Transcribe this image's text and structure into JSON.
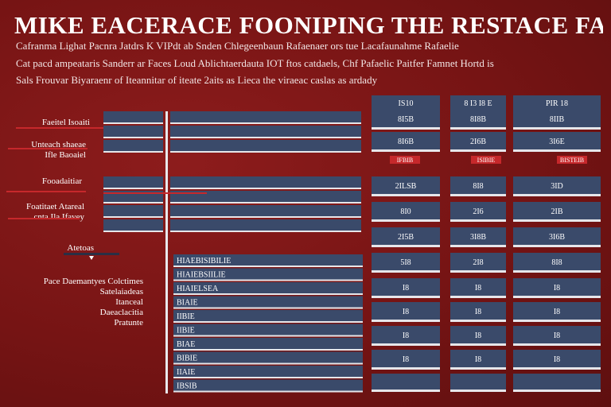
{
  "header": {
    "title": "MIKE EACERACE FOONIPING THE RESTACE FAMDICITA",
    "subtitle_lines": [
      "Cafranma Lighat Pacnra Jatdrs K VIPdt ab Snden Chlegeenbaun Rafaenaer ors tue Lacafaunahme Rafaelie",
      "Cat pacd ampeataris Sanderr ar Faces Loud Ablichtaerdauta IOT ftos catdaels, Chf Pafaelic Paitfer Famnet Hortd is",
      "Sals Frouvar Biyaraenr of Iteannitar of iteate 2aits as Lieca the viraeac caslas as ardady"
    ]
  },
  "left_labels": [
    {
      "lines": [
        "Faeitel Isoaiti"
      ]
    },
    {
      "lines": [
        "Unteach shaeae",
        "Ifle Baoaiel"
      ]
    },
    {
      "lines": [
        "Fooadaitiar"
      ]
    },
    {
      "lines": [
        "Foatitaet Atareal",
        "cnta Ila Ifavey"
      ]
    },
    {
      "lines": [
        "Atetoas"
      ]
    },
    {
      "lines": [
        "Pace Daemantyes Colctimes",
        "Satelaiadeas",
        "Itanceal",
        "Daeaclacitia",
        "Pratunte"
      ]
    }
  ],
  "column_headers": [
    "IS10",
    "8 I3 I8 E",
    "PIR 18"
  ],
  "chart_data": {
    "type": "table",
    "title": "MIKE EACERACE FOONIPING THE RESTACE FAMDICITA",
    "columns": [
      "IS10",
      "8 I3 I8 E",
      "PIR 18"
    ],
    "rows": [
      {
        "label": "Faeitel Isoaiti",
        "values": [
          "8I5B",
          "8I8B",
          "8IIB"
        ]
      },
      {
        "label": "Unteach shaeae",
        "values": [
          "8I6B",
          "2I6B",
          "3I6E"
        ]
      },
      {
        "label": "Fooadaitiar",
        "values": [
          "2ILSB",
          "8I8",
          "3ID"
        ]
      },
      {
        "label": "Foatitaet Atareal",
        "values": [
          "8I0",
          "2I6",
          "2IB"
        ]
      },
      {
        "label": "Atetoas",
        "values": [
          "2I5B",
          "3I8B",
          "3I6B"
        ]
      },
      {
        "label": "Pace Daemantyes",
        "values": [
          "5I8",
          "2I8",
          "8I8"
        ]
      },
      {
        "label": "Satelaiadeas",
        "values": [
          "I8",
          "I8",
          "I8"
        ]
      },
      {
        "label": "Itanceal",
        "values": [
          "I8",
          "I8",
          "I8"
        ]
      },
      {
        "label": "Daeaclacitia",
        "values": [
          "I8",
          "I8",
          "I8"
        ]
      },
      {
        "label": "Pratunte",
        "values": [
          "I8",
          "I8",
          "I8"
        ]
      }
    ],
    "row_tags": [
      "IFBIB",
      "ISIBIE",
      "BISTEIB"
    ],
    "inner_list": [
      "HIAEBISIBILIE",
      "HIAIEBSIILIE",
      "HIAIELSEA",
      "BIAIE",
      "IIBIE",
      "IIBIE",
      "BIAE",
      "BIBIE",
      "IIAIE",
      "IBSIB"
    ],
    "colors": {
      "background": "#7a1717",
      "bar": "#3a4a6a",
      "stripe": "#e6e6ea",
      "accent": "#c6282b"
    }
  }
}
